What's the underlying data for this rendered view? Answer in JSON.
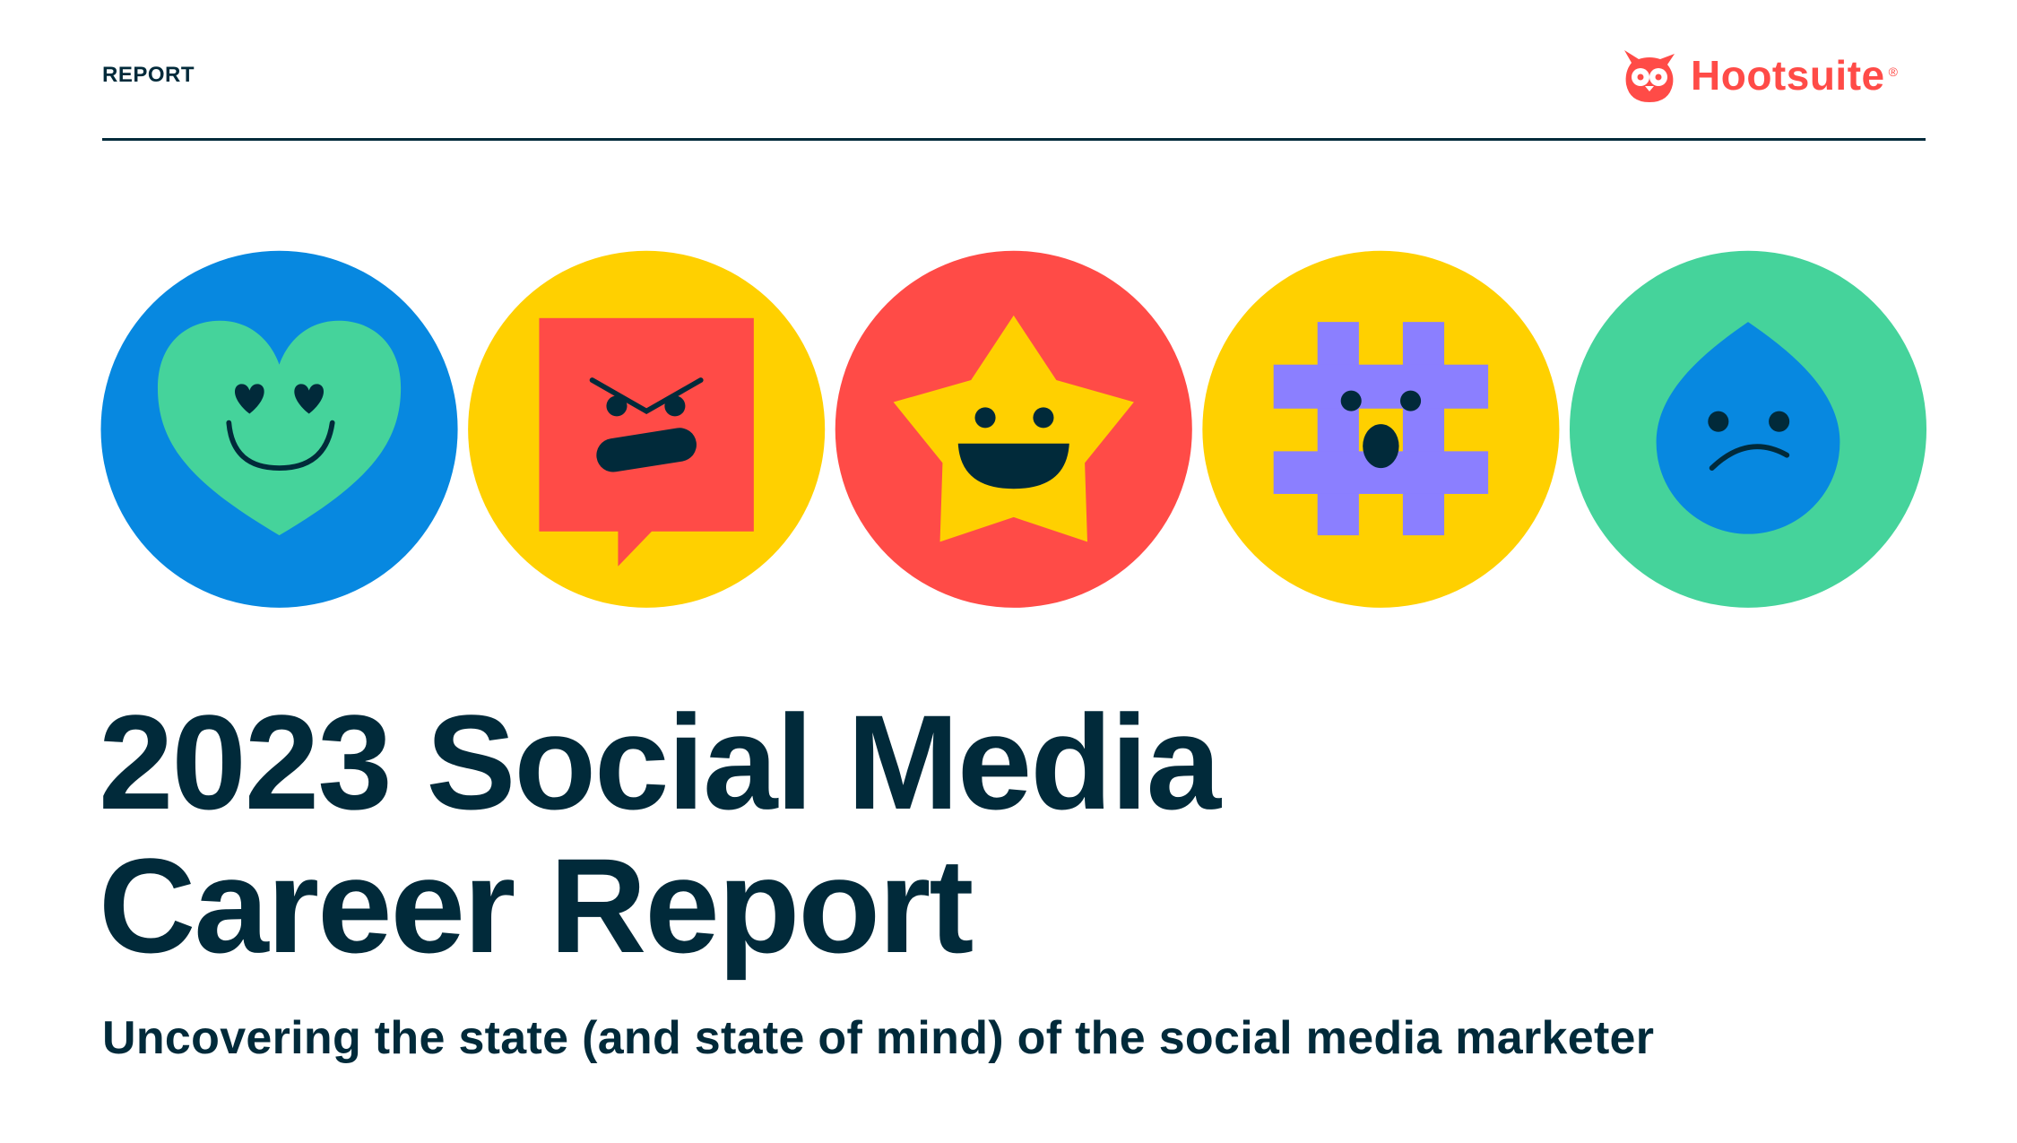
{
  "header": {
    "label": "REPORT",
    "brand": "Hootsuite",
    "brand_mark": "®"
  },
  "icons": [
    {
      "name": "heart-love-eyes-icon",
      "bg": "#0788e0",
      "fg": "#45d39b"
    },
    {
      "name": "angry-speech-bubble-icon",
      "bg": "#ffd000",
      "fg": "#ff4b47"
    },
    {
      "name": "happy-star-icon",
      "bg": "#ff4b47",
      "fg": "#ffd000"
    },
    {
      "name": "surprised-hashtag-icon",
      "bg": "#ffd000",
      "fg": "#8b7fff"
    },
    {
      "name": "sad-drop-icon",
      "bg": "#45d39b",
      "fg": "#0788e0"
    }
  ],
  "colors": {
    "ink": "#012a3a",
    "brand": "#ff4b47"
  },
  "title": {
    "line1": "2023 Social Media",
    "line2": "Career Report"
  },
  "subtitle": "Uncovering the state (and state of mind) of the social media marketer"
}
